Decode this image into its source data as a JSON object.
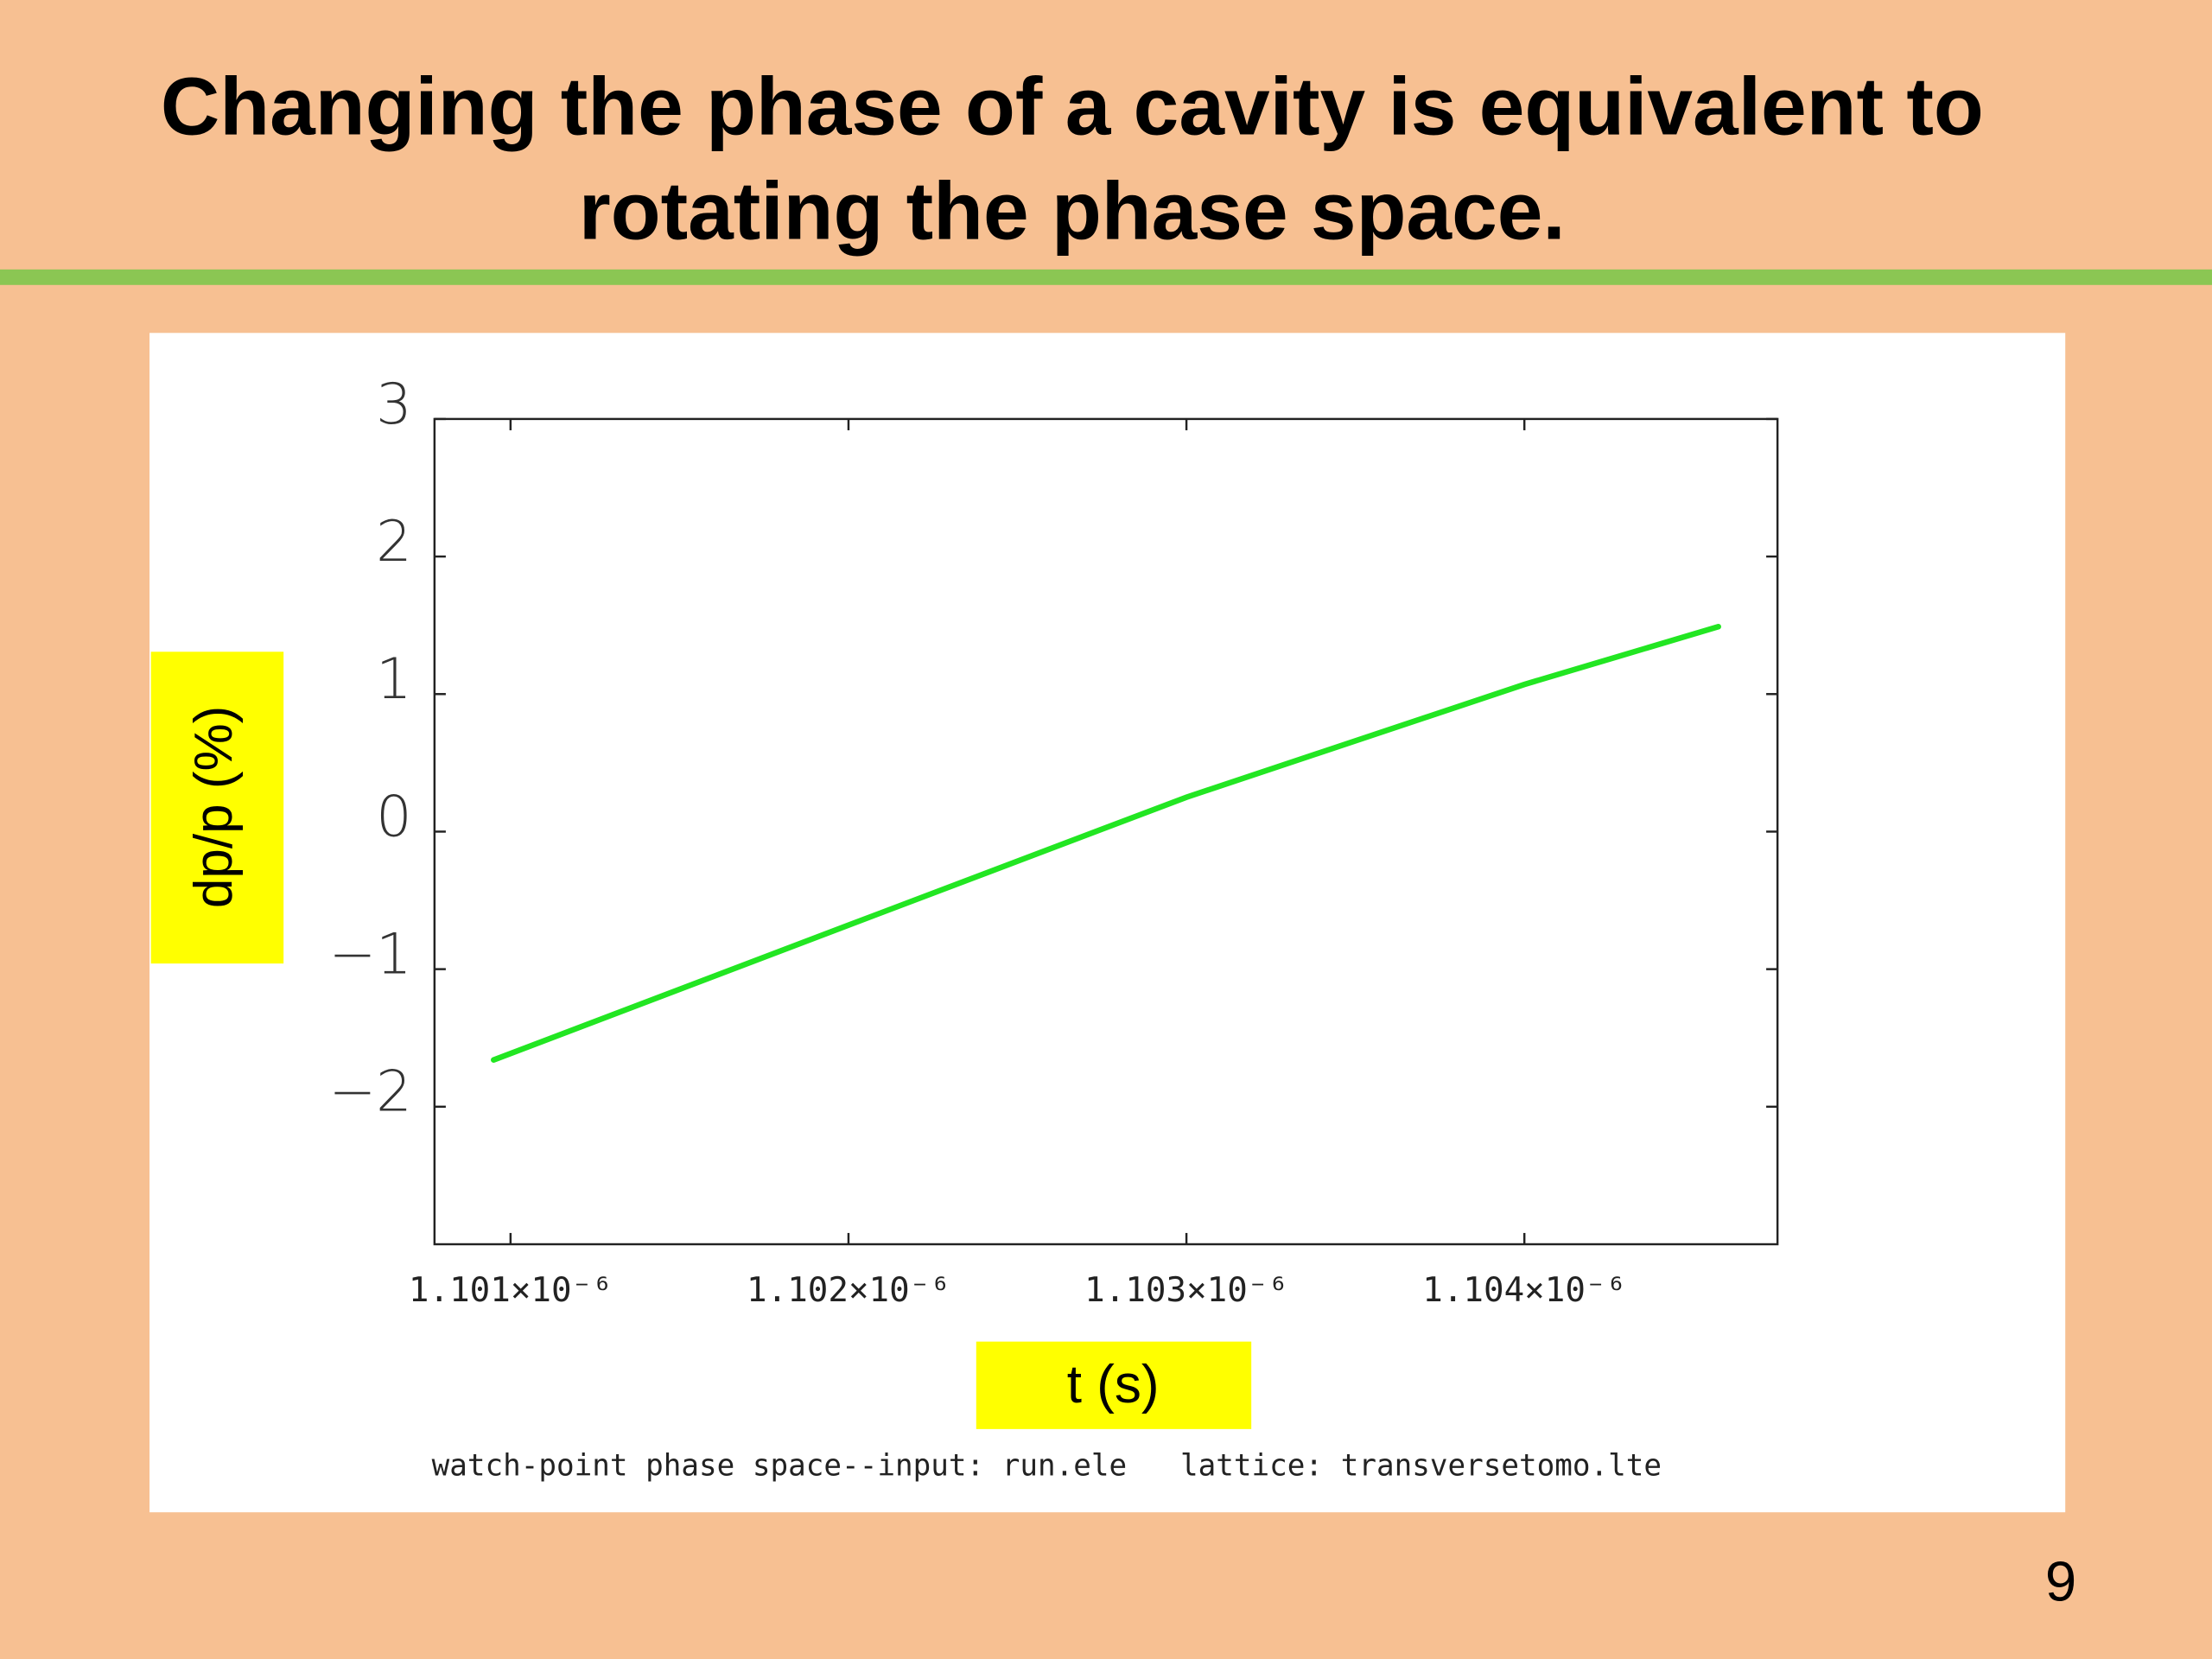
{
  "slide": {
    "title": [
      "Changing the phase of a cavity is equivalent to",
      "rotating the phase space."
    ],
    "page_number": "9"
  },
  "chart_data": {
    "type": "line",
    "x_label": "t (s)",
    "y_label": "dp/p (%)",
    "caption": "watch-point phase space--input: run.ele   lattice: transversetomo.lte",
    "series": [
      {
        "name": "dp/p",
        "color": "#22e622",
        "x": [
          1.10095e-06,
          1.102e-06,
          1.103e-06,
          1.104e-06,
          1.104574e-06
        ],
        "values": [
          -1.66,
          -0.68,
          0.25,
          1.07,
          1.49
        ]
      }
    ],
    "xlim": [
      1.100775e-06,
      1.104749e-06
    ],
    "xticks": [
      {
        "value": 1.101e-06,
        "label": "1.101×10⁻⁶"
      },
      {
        "value": 1.102e-06,
        "label": "1.102×10⁻⁶"
      },
      {
        "value": 1.103e-06,
        "label": "1.103×10⁻⁶"
      },
      {
        "value": 1.104e-06,
        "label": "1.104×10⁻⁶"
      }
    ],
    "ylim": [
      -3,
      3
    ],
    "yticks": [
      {
        "value": -2,
        "label": "−2"
      },
      {
        "value": -1,
        "label": "−1"
      },
      0,
      1,
      2,
      3
    ],
    "grid": false
  }
}
